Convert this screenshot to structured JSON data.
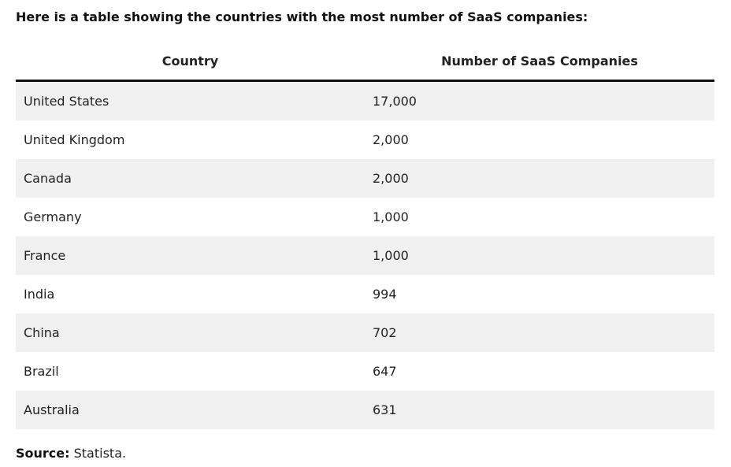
{
  "intro": "Here is a table showing the countries with the most number of SaaS companies:",
  "table": {
    "headers": [
      "Country",
      "Number of SaaS Companies"
    ],
    "rows": [
      {
        "country": "United States",
        "count": "17,000"
      },
      {
        "country": "United Kingdom",
        "count": "2,000"
      },
      {
        "country": "Canada",
        "count": "2,000"
      },
      {
        "country": "Germany",
        "count": "1,000"
      },
      {
        "country": "France",
        "count": "1,000"
      },
      {
        "country": "India",
        "count": "994"
      },
      {
        "country": "China",
        "count": "702"
      },
      {
        "country": "Brazil",
        "count": "647"
      },
      {
        "country": "Australia",
        "count": "631"
      }
    ]
  },
  "source": {
    "label": "Source:",
    "value": "Statista."
  }
}
